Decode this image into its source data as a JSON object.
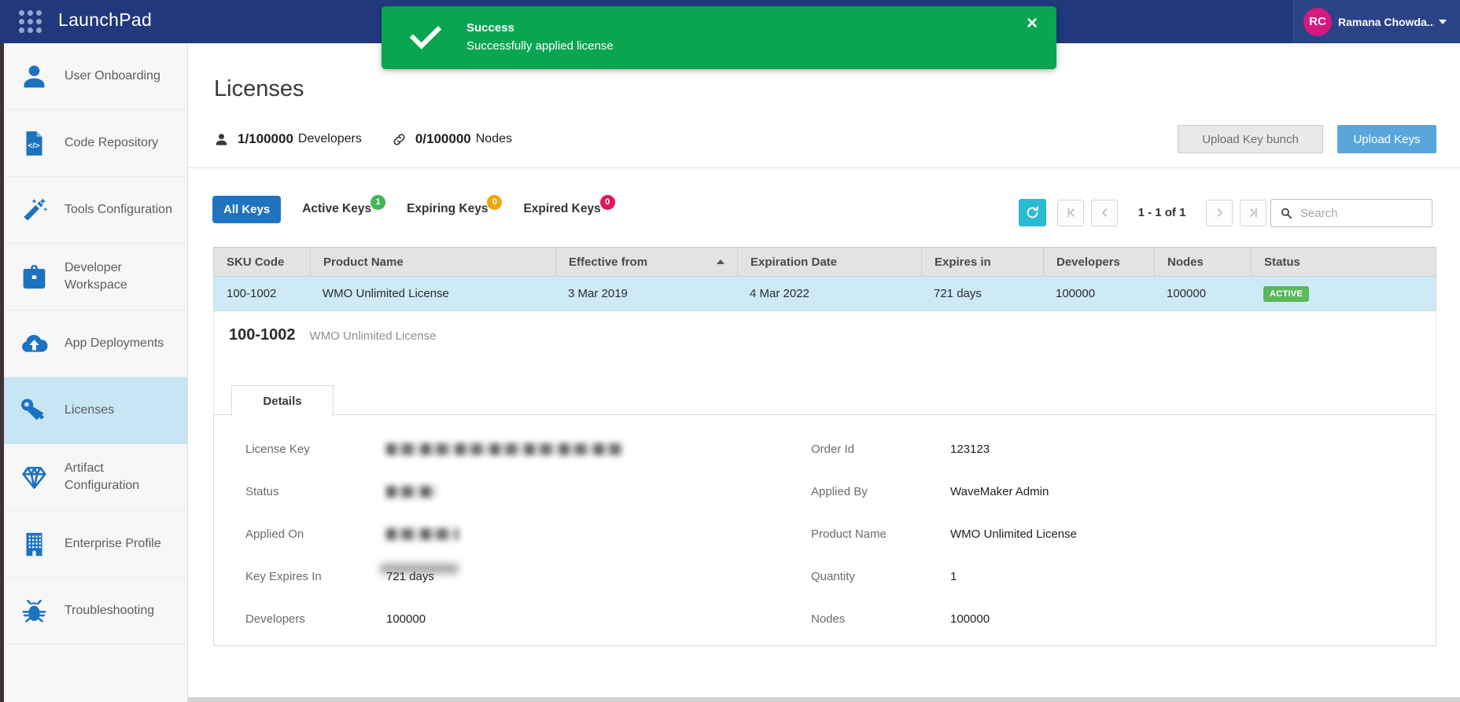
{
  "topbar": {
    "app_name": "LaunchPad",
    "user": {
      "initials": "RC",
      "name": "Ramana Chowda...",
      "avatar_color": "#D6187F"
    }
  },
  "toast": {
    "title": "Success",
    "message": "Successfully applied license",
    "color": "#09A551"
  },
  "sidebar": {
    "items": [
      {
        "label": "User Onboarding",
        "icon": "user-icon",
        "active": false
      },
      {
        "label": "Code Repository",
        "icon": "code-repository-icon",
        "active": false
      },
      {
        "label": "Tools Configuration",
        "icon": "magic-wand-icon",
        "active": false
      },
      {
        "label": "Developer Workspace",
        "icon": "briefcase-icon",
        "active": false
      },
      {
        "label": "App Deployments",
        "icon": "cloud-upload-icon",
        "active": false
      },
      {
        "label": "Licenses",
        "icon": "key-icon",
        "active": true
      },
      {
        "label": "Artifact Configuration",
        "icon": "diamond-icon",
        "active": false
      },
      {
        "label": "Enterprise Profile",
        "icon": "building-icon",
        "active": false
      },
      {
        "label": "Troubleshooting",
        "icon": "bug-icon",
        "active": false
      }
    ]
  },
  "page": {
    "title": "Licenses",
    "stats": [
      {
        "icon": "developers-icon",
        "value": "1/100000",
        "label": "Developers"
      },
      {
        "icon": "nodes-link-icon",
        "value": "0/100000",
        "label": "Nodes"
      }
    ],
    "actions": [
      {
        "label": "Upload Key bunch",
        "style": "secondary"
      },
      {
        "label": "Upload Keys",
        "style": "primary"
      }
    ]
  },
  "tabs": [
    {
      "label": "All Keys",
      "active": true
    },
    {
      "label": "Active Keys",
      "active": false,
      "badge": "1",
      "badge_color": "#43B754"
    },
    {
      "label": "Expiring Keys",
      "active": false,
      "badge": "0",
      "badge_color": "#F2A50F"
    },
    {
      "label": "Expired Keys",
      "active": false,
      "badge": "0",
      "badge_color": "#E0175B"
    }
  ],
  "pagination": {
    "range_text": "1 - 1 of 1",
    "search_placeholder": "Search"
  },
  "table": {
    "columns": [
      "SKU Code",
      "Product Name",
      "Effective from",
      "Expiration Date",
      "Expires in",
      "Developers",
      "Nodes",
      "Status"
    ],
    "sorted_column": "Effective from",
    "sort_direction": "asc",
    "status_badge_color": "#5CB85C",
    "rows": [
      {
        "cells": [
          "100-1002",
          "WMO Unlimited License",
          "3 Mar 2019",
          "4 Mar 2022",
          "721 days",
          "100000",
          "100000",
          "ACTIVE"
        ],
        "selected": true
      }
    ]
  },
  "expanded": {
    "sku": "100-1002",
    "product": "WMO Unlimited License",
    "tab": "Details",
    "details_left": [
      {
        "label": "License Key",
        "value": "",
        "blurred": true,
        "blur_width": 300
      },
      {
        "label": "Status",
        "value": "",
        "blurred": true,
        "blur_width": 64
      },
      {
        "label": "Applied On",
        "value": "",
        "blurred": true,
        "blur_width": 92
      },
      {
        "label": "Key Expires In",
        "value": "721 days",
        "blurred": false,
        "blur_overlay": true
      },
      {
        "label": "Developers",
        "value": "100000",
        "blurred": false
      }
    ],
    "details_right": [
      {
        "label": "Order Id",
        "value": "123123"
      },
      {
        "label": "Applied By",
        "value": "WaveMaker Admin"
      },
      {
        "label": "Product Name",
        "value": "WMO Unlimited License"
      },
      {
        "label": "Quantity",
        "value": "1"
      },
      {
        "label": "Nodes",
        "value": "100000"
      }
    ]
  },
  "colors": {
    "topbar_bg": "#21397C",
    "toast_green": "#09A551",
    "sidebar_icon_blue": "#1B72C0",
    "sidebar_active_bg": "#C8E5F4",
    "active_tab_blue": "#1F73BF",
    "refresh_cyan": "#2CB9D2",
    "primary_button_blue": "#58A6DC",
    "selected_row_blue": "#CEEAF7",
    "avatar_pink": "#D6187F"
  }
}
